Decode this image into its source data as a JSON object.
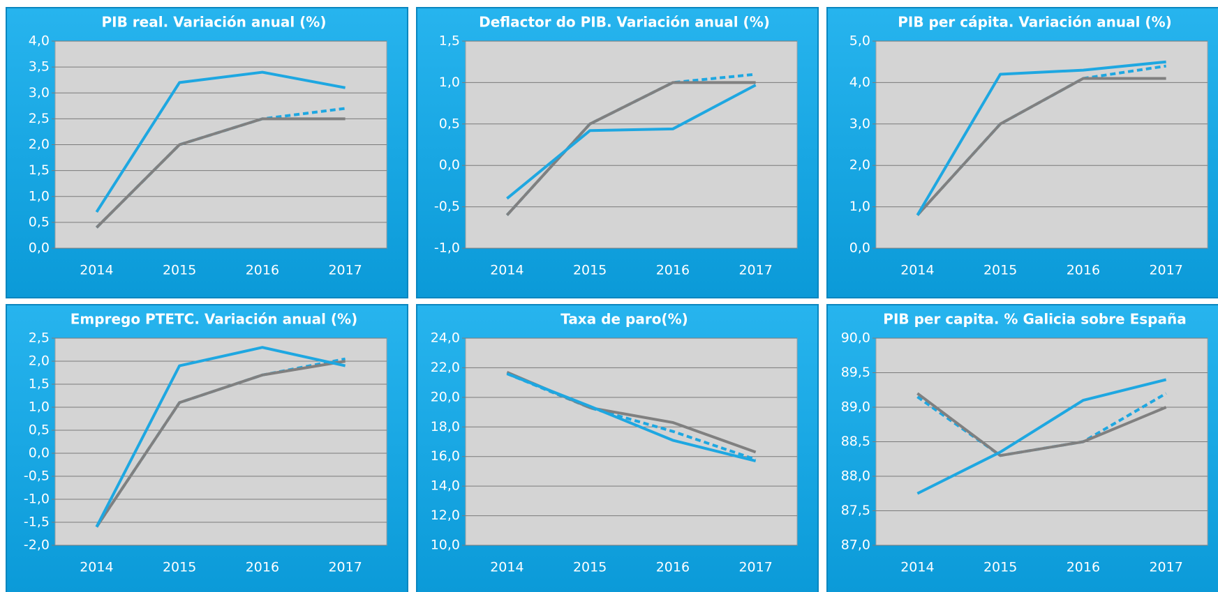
{
  "chart_data": [
    {
      "type": "line",
      "title": "PIB real. Variación anual (%)",
      "categories": [
        "2014",
        "2015",
        "2016",
        "2017"
      ],
      "series": [
        {
          "color": "#1ea7e1",
          "dashed": true,
          "values": [
            0.4,
            2.0,
            2.5,
            2.7
          ]
        },
        {
          "color": "#808080",
          "dashed": false,
          "values": [
            0.4,
            2.0,
            2.5,
            2.5
          ]
        },
        {
          "color": "#1ea7e1",
          "dashed": false,
          "values": [
            0.7,
            3.2,
            3.4,
            3.1
          ]
        }
      ],
      "ylim": [
        0,
        4
      ],
      "yticks": [
        {
          "value": 0,
          "label": "0,0"
        },
        {
          "value": 0.5,
          "label": "0,5"
        },
        {
          "value": 1,
          "label": "1,0"
        },
        {
          "value": 1.5,
          "label": "1,5"
        },
        {
          "value": 2,
          "label": "2,0"
        },
        {
          "value": 2.5,
          "label": "2,5"
        },
        {
          "value": 3,
          "label": "3,0"
        },
        {
          "value": 3.5,
          "label": "3,5"
        },
        {
          "value": 4,
          "label": "4,0"
        }
      ],
      "grid": true
    },
    {
      "type": "line",
      "title": "Deflactor do PIB. Variación anual (%)",
      "categories": [
        "2014",
        "2015",
        "2016",
        "2017"
      ],
      "series": [
        {
          "color": "#1ea7e1",
          "dashed": true,
          "values": [
            -0.6,
            0.5,
            1.0,
            1.1
          ]
        },
        {
          "color": "#808080",
          "dashed": false,
          "values": [
            -0.6,
            0.5,
            1.0,
            1.0
          ]
        },
        {
          "color": "#1ea7e1",
          "dashed": false,
          "values": [
            -0.4,
            0.42,
            0.44,
            0.97
          ]
        }
      ],
      "ylim": [
        -1,
        1.5
      ],
      "yticks": [
        {
          "value": -1,
          "label": "-1,0"
        },
        {
          "value": -0.5,
          "label": "-0,5"
        },
        {
          "value": 0,
          "label": "0,0"
        },
        {
          "value": 0.5,
          "label": "0,5"
        },
        {
          "value": 1,
          "label": "1,0"
        },
        {
          "value": 1.5,
          "label": "1,5"
        }
      ],
      "grid": true
    },
    {
      "type": "line",
      "title": "PIB per cápita. Variación anual (%)",
      "categories": [
        "2014",
        "2015",
        "2016",
        "2017"
      ],
      "series": [
        {
          "color": "#1ea7e1",
          "dashed": true,
          "values": [
            0.8,
            3.0,
            4.1,
            4.4
          ]
        },
        {
          "color": "#808080",
          "dashed": false,
          "values": [
            0.8,
            3.0,
            4.1,
            4.1
          ]
        },
        {
          "color": "#1ea7e1",
          "dashed": false,
          "values": [
            0.8,
            4.2,
            4.3,
            4.5
          ]
        }
      ],
      "ylim": [
        0,
        5
      ],
      "yticks": [
        {
          "value": 0,
          "label": "0,0"
        },
        {
          "value": 1,
          "label": "1,0"
        },
        {
          "value": 2,
          "label": "2,0"
        },
        {
          "value": 3,
          "label": "3,0"
        },
        {
          "value": 4,
          "label": "4,0"
        },
        {
          "value": 5,
          "label": "5,0"
        }
      ],
      "grid": true
    },
    {
      "type": "line",
      "title": "Emprego PTETC. Variación anual (%)",
      "categories": [
        "2014",
        "2015",
        "2016",
        "2017"
      ],
      "series": [
        {
          "color": "#1ea7e1",
          "dashed": true,
          "values": [
            -1.6,
            1.1,
            1.7,
            2.05
          ]
        },
        {
          "color": "#808080",
          "dashed": false,
          "values": [
            -1.6,
            1.1,
            1.7,
            2.0
          ]
        },
        {
          "color": "#1ea7e1",
          "dashed": false,
          "values": [
            -1.6,
            1.9,
            2.3,
            1.9
          ]
        }
      ],
      "ylim": [
        -2,
        2.5
      ],
      "yticks": [
        {
          "value": -2,
          "label": "-2,0"
        },
        {
          "value": -1.5,
          "label": "-1,5"
        },
        {
          "value": -1,
          "label": "-1,0"
        },
        {
          "value": -0.5,
          "label": "-0,5"
        },
        {
          "value": 0,
          "label": "0,0"
        },
        {
          "value": 0.5,
          "label": "0,5"
        },
        {
          "value": 1,
          "label": "1,0"
        },
        {
          "value": 1.5,
          "label": "1,5"
        },
        {
          "value": 2,
          "label": "2,0"
        },
        {
          "value": 2.5,
          "label": "2,5"
        }
      ],
      "grid": true
    },
    {
      "type": "line",
      "title": "Taxa de paro(%)",
      "categories": [
        "2014",
        "2015",
        "2016",
        "2017"
      ],
      "series": [
        {
          "color": "#1ea7e1",
          "dashed": true,
          "values": [
            21.6,
            19.3,
            17.7,
            15.8
          ]
        },
        {
          "color": "#808080",
          "dashed": false,
          "values": [
            21.7,
            19.3,
            18.3,
            16.3
          ]
        },
        {
          "color": "#1ea7e1",
          "dashed": false,
          "values": [
            21.6,
            19.4,
            17.1,
            15.7
          ]
        }
      ],
      "ylim": [
        10,
        24
      ],
      "yticks": [
        {
          "value": 10,
          "label": "10,0"
        },
        {
          "value": 12,
          "label": "12,0"
        },
        {
          "value": 14,
          "label": "14,0"
        },
        {
          "value": 16,
          "label": "16,0"
        },
        {
          "value": 18,
          "label": "18,0"
        },
        {
          "value": 20,
          "label": "20,0"
        },
        {
          "value": 22,
          "label": "22,0"
        },
        {
          "value": 24,
          "label": "24,0"
        }
      ],
      "grid": true
    },
    {
      "type": "line",
      "title": "PIB per capita. % Galicia sobre España",
      "categories": [
        "2014",
        "2015",
        "2016",
        "2017"
      ],
      "series": [
        {
          "color": "#1ea7e1",
          "dashed": true,
          "values": [
            89.15,
            88.3,
            88.5,
            89.2
          ]
        },
        {
          "color": "#808080",
          "dashed": false,
          "values": [
            89.2,
            88.3,
            88.5,
            89.0
          ]
        },
        {
          "color": "#1ea7e1",
          "dashed": false,
          "values": [
            87.75,
            88.35,
            89.1,
            89.4
          ]
        }
      ],
      "ylim": [
        87,
        90
      ],
      "yticks": [
        {
          "value": 87,
          "label": "87,0"
        },
        {
          "value": 87.5,
          "label": "87,5"
        },
        {
          "value": 88,
          "label": "88,0"
        },
        {
          "value": 88.5,
          "label": "88,5"
        },
        {
          "value": 89,
          "label": "89,0"
        },
        {
          "value": 89.5,
          "label": "89,5"
        },
        {
          "value": 90,
          "label": "90,0"
        }
      ],
      "grid": true
    }
  ]
}
